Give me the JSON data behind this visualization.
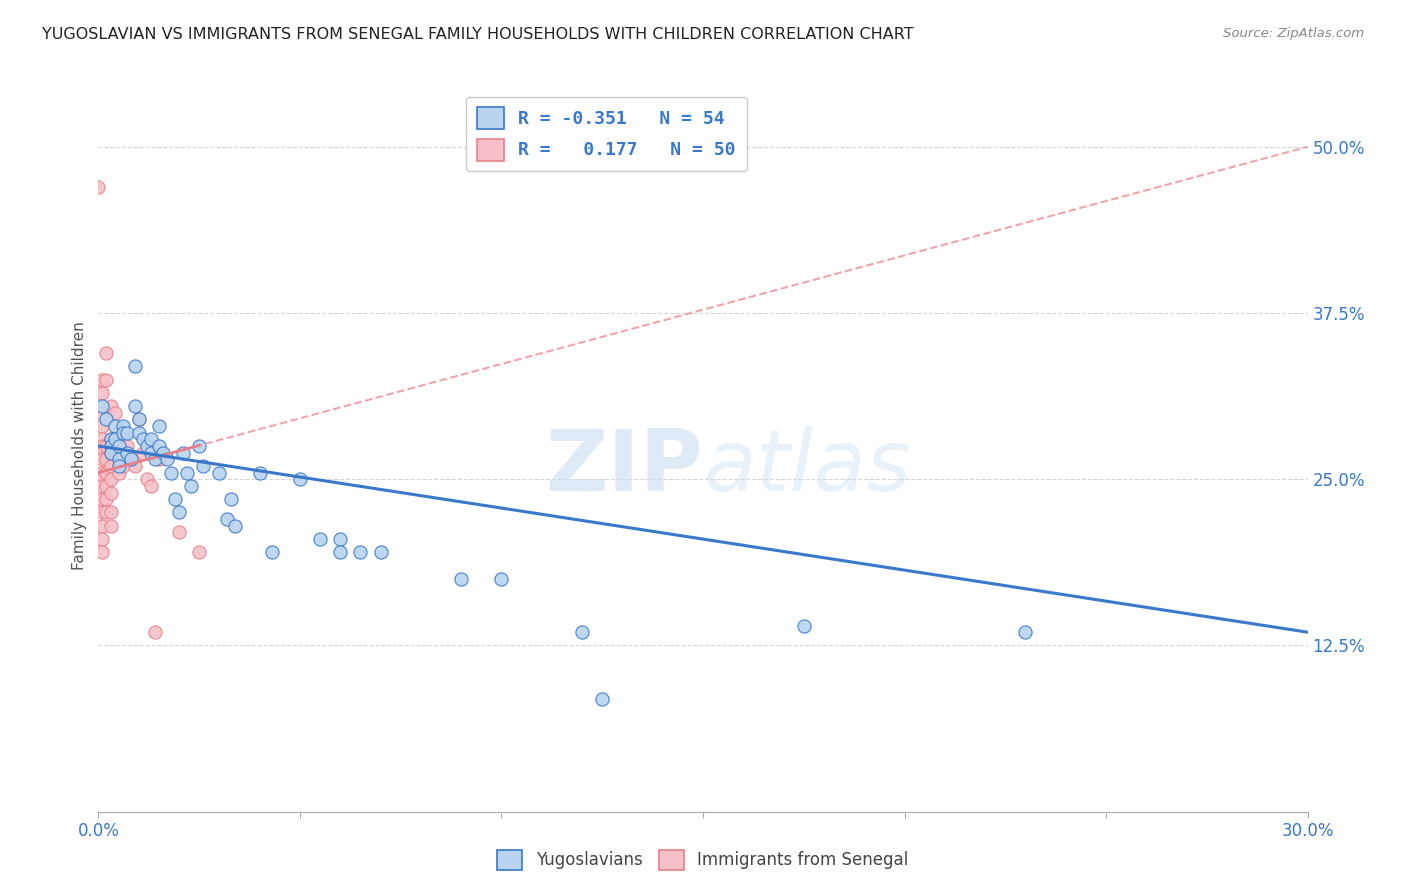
{
  "title": "YUGOSLAVIAN VS IMMIGRANTS FROM SENEGAL FAMILY HOUSEHOLDS WITH CHILDREN CORRELATION CHART",
  "source": "Source: ZipAtlas.com",
  "ylabel": "Family Households with Children",
  "x_min": 0.0,
  "x_max": 0.3,
  "y_min": 0.0,
  "y_max": 0.55,
  "x_ticks": [
    0.0,
    0.05,
    0.1,
    0.15,
    0.2,
    0.25,
    0.3
  ],
  "x_tick_labels": [
    "0.0%",
    "",
    "",
    "",
    "",
    "",
    "30.0%"
  ],
  "y_ticks": [
    0.125,
    0.25,
    0.375,
    0.5
  ],
  "y_tick_labels": [
    "12.5%",
    "25.0%",
    "37.5%",
    "50.0%"
  ],
  "legend_r1": "R = -0.351   N = 54",
  "legend_r2": "R =   0.177   N = 50",
  "blue_scatter": [
    [
      0.001,
      0.305
    ],
    [
      0.002,
      0.295
    ],
    [
      0.003,
      0.28
    ],
    [
      0.003,
      0.275
    ],
    [
      0.003,
      0.27
    ],
    [
      0.004,
      0.29
    ],
    [
      0.004,
      0.28
    ],
    [
      0.005,
      0.275
    ],
    [
      0.005,
      0.265
    ],
    [
      0.005,
      0.26
    ],
    [
      0.006,
      0.29
    ],
    [
      0.006,
      0.285
    ],
    [
      0.007,
      0.285
    ],
    [
      0.007,
      0.27
    ],
    [
      0.008,
      0.265
    ],
    [
      0.009,
      0.335
    ],
    [
      0.009,
      0.305
    ],
    [
      0.01,
      0.295
    ],
    [
      0.01,
      0.285
    ],
    [
      0.011,
      0.28
    ],
    [
      0.012,
      0.275
    ],
    [
      0.013,
      0.28
    ],
    [
      0.013,
      0.27
    ],
    [
      0.014,
      0.265
    ],
    [
      0.015,
      0.29
    ],
    [
      0.015,
      0.275
    ],
    [
      0.016,
      0.27
    ],
    [
      0.017,
      0.265
    ],
    [
      0.018,
      0.255
    ],
    [
      0.019,
      0.235
    ],
    [
      0.02,
      0.225
    ],
    [
      0.021,
      0.27
    ],
    [
      0.022,
      0.255
    ],
    [
      0.023,
      0.245
    ],
    [
      0.025,
      0.275
    ],
    [
      0.026,
      0.26
    ],
    [
      0.03,
      0.255
    ],
    [
      0.032,
      0.22
    ],
    [
      0.033,
      0.235
    ],
    [
      0.034,
      0.215
    ],
    [
      0.04,
      0.255
    ],
    [
      0.043,
      0.195
    ],
    [
      0.05,
      0.25
    ],
    [
      0.055,
      0.205
    ],
    [
      0.06,
      0.205
    ],
    [
      0.06,
      0.195
    ],
    [
      0.065,
      0.195
    ],
    [
      0.07,
      0.195
    ],
    [
      0.09,
      0.175
    ],
    [
      0.1,
      0.175
    ],
    [
      0.12,
      0.135
    ],
    [
      0.125,
      0.085
    ],
    [
      0.175,
      0.14
    ],
    [
      0.23,
      0.135
    ]
  ],
  "pink_scatter": [
    [
      0.0,
      0.47
    ],
    [
      0.001,
      0.325
    ],
    [
      0.001,
      0.315
    ],
    [
      0.001,
      0.3
    ],
    [
      0.001,
      0.29
    ],
    [
      0.001,
      0.28
    ],
    [
      0.001,
      0.275
    ],
    [
      0.001,
      0.27
    ],
    [
      0.001,
      0.265
    ],
    [
      0.001,
      0.255
    ],
    [
      0.001,
      0.25
    ],
    [
      0.001,
      0.245
    ],
    [
      0.001,
      0.235
    ],
    [
      0.001,
      0.225
    ],
    [
      0.001,
      0.215
    ],
    [
      0.001,
      0.205
    ],
    [
      0.001,
      0.195
    ],
    [
      0.002,
      0.345
    ],
    [
      0.002,
      0.325
    ],
    [
      0.002,
      0.275
    ],
    [
      0.002,
      0.265
    ],
    [
      0.002,
      0.255
    ],
    [
      0.002,
      0.245
    ],
    [
      0.002,
      0.235
    ],
    [
      0.002,
      0.225
    ],
    [
      0.003,
      0.305
    ],
    [
      0.003,
      0.28
    ],
    [
      0.003,
      0.27
    ],
    [
      0.003,
      0.26
    ],
    [
      0.003,
      0.25
    ],
    [
      0.003,
      0.24
    ],
    [
      0.003,
      0.225
    ],
    [
      0.003,
      0.215
    ],
    [
      0.004,
      0.3
    ],
    [
      0.004,
      0.28
    ],
    [
      0.004,
      0.27
    ],
    [
      0.005,
      0.285
    ],
    [
      0.005,
      0.255
    ],
    [
      0.006,
      0.26
    ],
    [
      0.007,
      0.275
    ],
    [
      0.008,
      0.265
    ],
    [
      0.009,
      0.26
    ],
    [
      0.01,
      0.295
    ],
    [
      0.011,
      0.27
    ],
    [
      0.012,
      0.25
    ],
    [
      0.013,
      0.245
    ],
    [
      0.014,
      0.135
    ],
    [
      0.015,
      0.265
    ],
    [
      0.02,
      0.21
    ],
    [
      0.025,
      0.195
    ]
  ],
  "blue_line_x": [
    0.0,
    0.3
  ],
  "blue_line_y": [
    0.275,
    0.135
  ],
  "pink_line_x": [
    0.0,
    0.3
  ],
  "pink_line_y": [
    0.255,
    0.5
  ],
  "blue_color": "#3a78c9",
  "blue_scatter_color": "#b8d4f0",
  "pink_color": "#e8808a",
  "pink_scatter_color": "#f5c0c8",
  "watermark_zip": "ZIP",
  "watermark_atlas": "atlas",
  "bg_color": "#ffffff"
}
